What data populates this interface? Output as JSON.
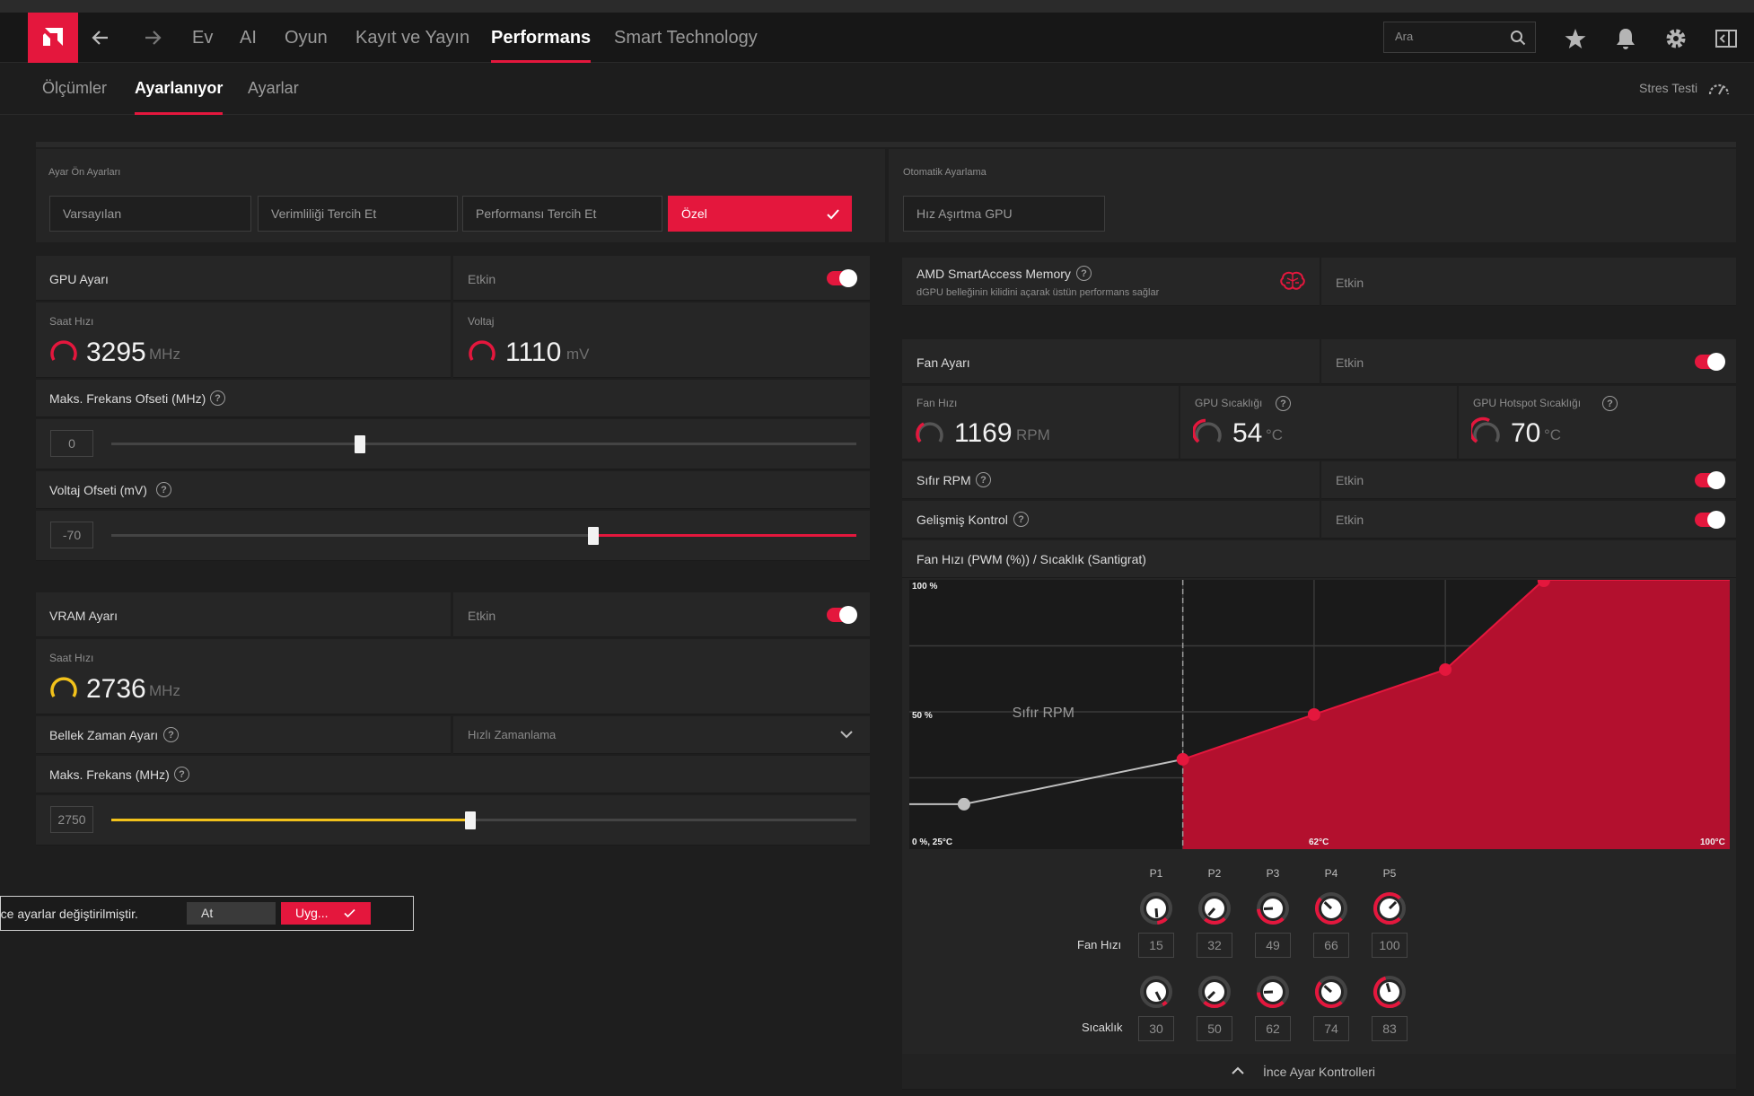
{
  "app": {
    "nav": {
      "tabs": [
        "Ev",
        "AI",
        "Oyun",
        "Kayıt ve Yayın",
        "Performans",
        "Smart Technology"
      ],
      "active_tab": "Performans",
      "search_placeholder": "Ara"
    },
    "subnav": {
      "tabs": [
        "Ölçümler",
        "Ayarlanıyor",
        "Ayarlar"
      ],
      "active_tab": "Ayarlanıyor",
      "stress_test": "Stres Testi"
    }
  },
  "presets": {
    "title": "Ayar Ön Ayarları",
    "options": [
      "Varsayılan",
      "Verimliliği Tercih Et",
      "Performansı Tercih Et",
      "Özel"
    ],
    "selected": "Özel"
  },
  "auto_tune": {
    "title": "Otomatik Ayarlama",
    "button": "Hız Aşırtma GPU"
  },
  "gpu": {
    "title": "GPU Ayarı",
    "status": "Etkin",
    "enabled": true,
    "clock_label": "Saat Hızı",
    "clock_value": "3295",
    "clock_unit": "MHz",
    "voltage_label": "Voltaj",
    "voltage_value": "1110",
    "voltage_unit": "mV",
    "max_freq_offset_label": "Maks. Frekans Ofseti (MHz)",
    "max_freq_offset_value": "0",
    "max_freq_offset_fraction": 0.335,
    "voltage_offset_label": "Voltaj Ofseti (mV)",
    "voltage_offset_value": "-70",
    "voltage_offset_fraction": 0.647
  },
  "vram": {
    "title": "VRAM Ayarı",
    "status": "Etkin",
    "enabled": true,
    "clock_label": "Saat Hızı",
    "clock_value": "2736",
    "clock_unit": "MHz",
    "timing_label": "Bellek Zaman Ayarı",
    "timing_value": "Hızlı Zamanlama",
    "max_freq_label": "Maks. Frekans (MHz)",
    "max_freq_value": "2750",
    "max_freq_fraction": 0.48
  },
  "sam": {
    "title": "AMD SmartAccess Memory",
    "subtitle": "dGPU belleğinin kilidini açarak üstün performans sağlar",
    "status": "Etkin"
  },
  "fan": {
    "title": "Fan Ayarı",
    "status": "Etkin",
    "enabled": true,
    "speed_label": "Fan Hızı",
    "speed_value": "1169",
    "speed_unit": "RPM",
    "gpu_temp_label": "GPU Sıcaklığı",
    "gpu_temp_value": "54",
    "gpu_temp_unit": "°C",
    "hotspot_label": "GPU Hotspot Sıcaklığı",
    "hotspot_value": "70",
    "hotspot_unit": "°C",
    "zero_rpm_label": "Sıfır RPM",
    "zero_rpm_status": "Etkin",
    "advanced_label": "Gelişmiş Kontrol",
    "advanced_status": "Etkin",
    "curve_title": "Fan Hızı (PWM (%)) / Sıcaklık (Santigrat)",
    "points": [
      "P1",
      "P2",
      "P3",
      "P4",
      "P5"
    ],
    "fan_speed_row_label": "Fan Hızı",
    "temp_row_label": "Sıcaklık",
    "fine_tune": "İnce Ayar Kontrolleri"
  },
  "chart_data": {
    "type": "area",
    "xlabel": "",
    "ylabel": "",
    "xlim": [
      25,
      100
    ],
    "ylim": [
      0,
      100
    ],
    "tick_labels": {
      "origin": "0 %, 25°C",
      "y_mid": "50 %",
      "y_top": "100 %",
      "x_mid": "62°C",
      "x_end": "100°C"
    },
    "annotation": "Sıfır RPM",
    "series": [
      {
        "x": [
          30,
          50,
          62,
          74,
          83
        ],
        "y": [
          15,
          32,
          49,
          66,
          100
        ]
      }
    ],
    "zero_rpm_temp": 50
  },
  "knobs": {
    "fan_speed": [
      "15",
      "32",
      "49",
      "66",
      "100"
    ],
    "temperature": [
      "30",
      "50",
      "62",
      "74",
      "83"
    ]
  },
  "notification": {
    "text": "İnce ayarlar değiştirilmiştir.",
    "discard": "At",
    "apply": "Uyg..."
  }
}
